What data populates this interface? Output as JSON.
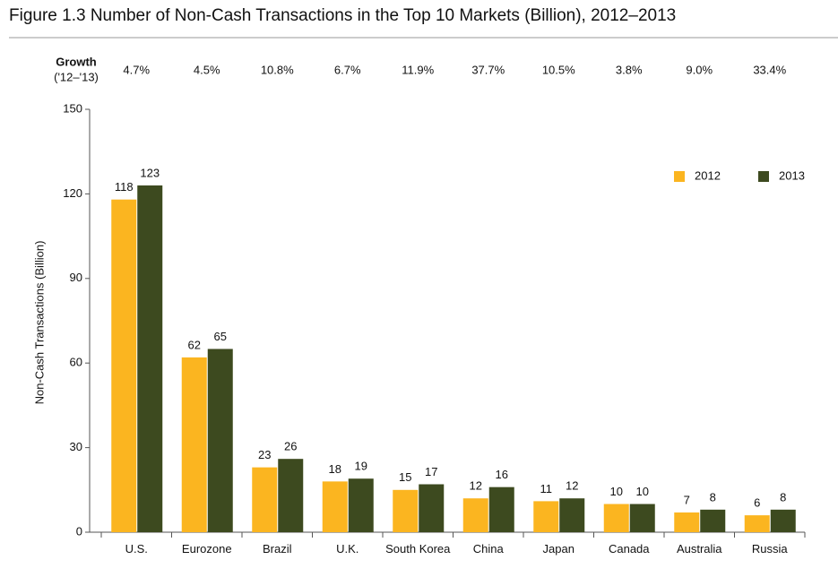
{
  "chart_data": {
    "type": "bar",
    "title": "Figure 1.3   Number of Non-Cash Transactions in the Top 10 Markets (Billion), 2012–2013",
    "y_label": "Non-Cash Transactions (Billion)",
    "growth": {
      "label": "Growth",
      "sublabel": "('12–'13)",
      "values": [
        "4.7%",
        "4.5%",
        "10.8%",
        "6.7%",
        "11.9%",
        "37.7%",
        "10.5%",
        "3.8%",
        "9.0%",
        "33.4%"
      ]
    },
    "categories": [
      "U.S.",
      "Eurozone",
      "Brazil",
      "U.K.",
      "South Korea",
      "China",
      "Japan",
      "Canada",
      "Australia",
      "Russia"
    ],
    "series": [
      {
        "name": "2012",
        "color": "#fbb520",
        "values": [
          118,
          62,
          23,
          18,
          15,
          12,
          11,
          10,
          7,
          6
        ]
      },
      {
        "name": "2013",
        "color": "#3d4a1f",
        "values": [
          123,
          65,
          26,
          19,
          17,
          16,
          12,
          10,
          8,
          8
        ]
      }
    ],
    "ylim": [
      0,
      150
    ],
    "yticks": [
      0,
      30,
      60,
      90,
      120,
      150
    ],
    "grid": false,
    "legend": "upper right"
  }
}
